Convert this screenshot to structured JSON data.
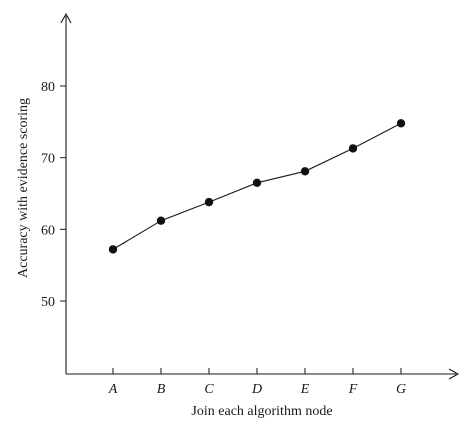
{
  "chart_data": {
    "type": "line",
    "title": "",
    "xlabel": "Join each algorithm node",
    "ylabel": "Accuracy with evidence scoring",
    "categories": [
      "A",
      "B",
      "C",
      "D",
      "E",
      "F",
      "G"
    ],
    "series": [
      {
        "values": [
          57.2,
          61.2,
          63.8,
          66.5,
          68.1,
          71.3,
          74.8
        ]
      }
    ],
    "yticks": [
      50,
      60,
      70,
      80
    ],
    "ylim": [
      40,
      90
    ],
    "grid": false,
    "legend": "none",
    "colors": {
      "line": "#1a1a1a",
      "point": "#111111"
    }
  }
}
